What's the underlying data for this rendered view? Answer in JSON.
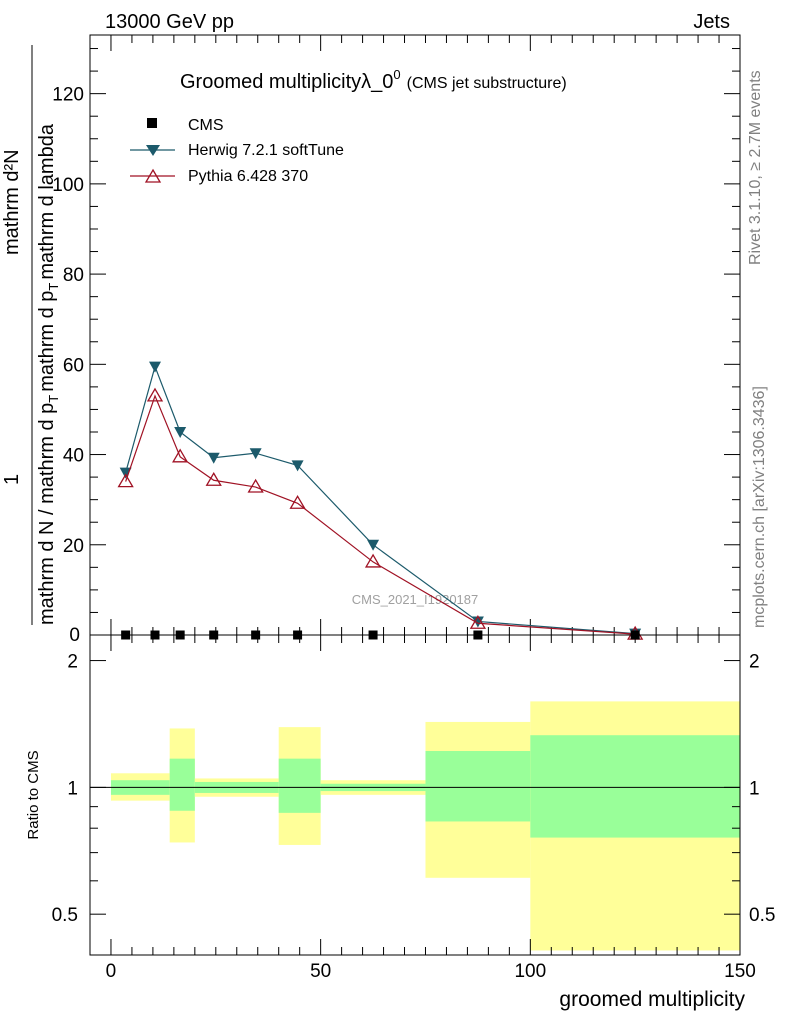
{
  "header": {
    "left": "13000 GeV pp",
    "right": "Jets",
    "side_top": "Rivet 3.1.10, ≥ 2.7M events",
    "side_bottom": "mcplots.cern.ch [arXiv:1306.3436]"
  },
  "colors": {
    "herwig": "#1c5a6b",
    "pythia": "#a01224",
    "data": "#000000",
    "band_inner": "#99ff99",
    "band_outer": "#ffff99"
  },
  "chart_data": [
    {
      "type": "line",
      "title": "Groomed multiplicityλ_0",
      "title_sup": "0",
      "subtitle": "(CMS jet substructure)",
      "watermark": "CMS_2021_I1920187",
      "ylabel_line1": "1",
      "ylabel_num": "mathrm d²N",
      "ylabel_den": "mathrm d N / mathrm d p",
      "ylabel_den2": "mathrm d p",
      "ylabel_den3": "mathrm d lambda",
      "ylabel_sub": "T",
      "xlim": [
        -5,
        150
      ],
      "ylim": [
        0,
        133
      ],
      "yticks": [
        20,
        40,
        60,
        80,
        100,
        120
      ],
      "x": [
        3.5,
        10.5,
        16.5,
        24.5,
        34.5,
        44.5,
        62.5,
        87.5,
        125
      ],
      "series": [
        {
          "name": "CMS",
          "marker": "square",
          "values": [
            0,
            0,
            0,
            0,
            0,
            0,
            0,
            0,
            0
          ]
        },
        {
          "name": "Herwig 7.2.1 softTune",
          "marker": "triangle-down",
          "values": [
            36,
            59.5,
            45,
            39.3,
            40.3,
            37.6,
            20,
            3,
            0.3
          ]
        },
        {
          "name": "Pythia 6.428 370",
          "marker": "triangle-up-open",
          "values": [
            34,
            53,
            39.5,
            34.3,
            32.8,
            29.2,
            16.2,
            2.6,
            0.2
          ]
        }
      ]
    },
    {
      "type": "area",
      "ylabel": "Ratio to CMS",
      "xlabel": "groomed multiplicity",
      "xlim": [
        -5,
        150
      ],
      "ylim": [
        0.4,
        2.3
      ],
      "xticks": [
        "0",
        "50",
        "100",
        "150"
      ],
      "yticks": [
        "0.5",
        "1",
        "2"
      ],
      "bins": [
        {
          "lo": 0,
          "hi": 14,
          "inner": [
            0.96,
            1.04
          ],
          "outer": [
            0.93,
            1.08
          ]
        },
        {
          "lo": 14,
          "hi": 20,
          "inner": [
            0.88,
            1.17
          ],
          "outer": [
            0.74,
            1.38
          ]
        },
        {
          "lo": 20,
          "hi": 40,
          "inner": [
            0.97,
            1.03
          ],
          "outer": [
            0.95,
            1.05
          ]
        },
        {
          "lo": 40,
          "hi": 50,
          "inner": [
            0.87,
            1.17
          ],
          "outer": [
            0.73,
            1.39
          ]
        },
        {
          "lo": 50,
          "hi": 75,
          "inner": [
            0.98,
            1.02
          ],
          "outer": [
            0.96,
            1.04
          ]
        },
        {
          "lo": 75,
          "hi": 100,
          "inner": [
            0.83,
            1.22
          ],
          "outer": [
            0.61,
            1.43
          ]
        },
        {
          "lo": 100,
          "hi": 150,
          "inner": [
            0.76,
            1.33
          ],
          "outer": [
            0.41,
            1.6
          ]
        }
      ]
    }
  ]
}
